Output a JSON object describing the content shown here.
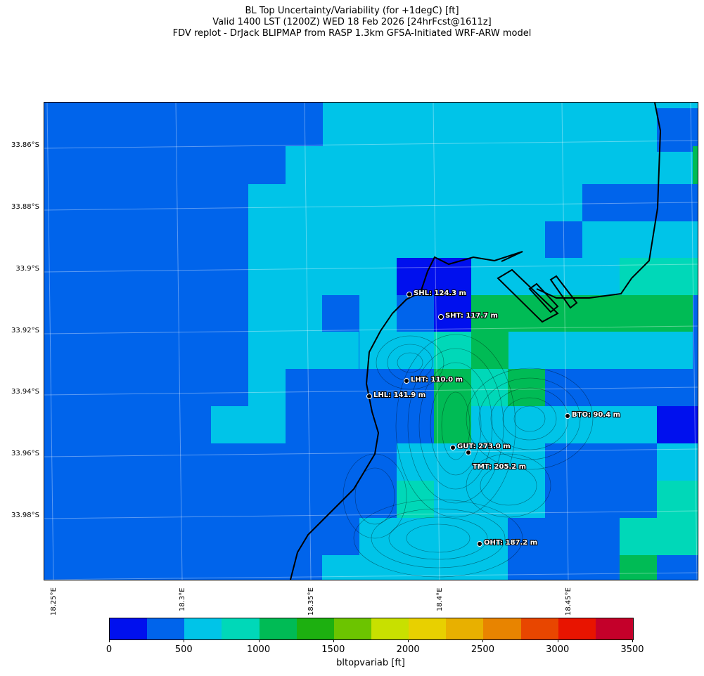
{
  "title": {
    "line1": "BL Top Uncertainty/Variability (for +1degC) [ft]",
    "line2": "Valid 1400 LST (1200Z) WED 18 Feb 2026 [24hrFcst@1611z]",
    "line3": "FDV replot - DrJack BLIPMAP from RASP 1.3km GFSA-Initiated WRF-ARW model"
  },
  "lat_labels": [
    "33.86°S",
    "33.88°S",
    "33.9°S",
    "33.92°S",
    "33.94°S",
    "33.96°S",
    "33.98°S"
  ],
  "lon_labels": [
    "18.25°E",
    "18.3°E",
    "18.35°E",
    "18.4°E",
    "18.45°E"
  ],
  "stations": [
    {
      "id": "SHL",
      "label": "SHL: 124.3 m"
    },
    {
      "id": "SHT",
      "label": "SHT: 117.7 m"
    },
    {
      "id": "LHT",
      "label": "LHT: 110.0 m"
    },
    {
      "id": "LHL",
      "label": "LHL: 141.9 m"
    },
    {
      "id": "BTO",
      "label": "BTO: 90.4 m"
    },
    {
      "id": "GUT",
      "label": "GUT: 273.0 m"
    },
    {
      "id": "TMT",
      "label": "TMT: 205.2 m"
    },
    {
      "id": "OHT",
      "label": "OHT: 187.2 m"
    }
  ],
  "colorbar": {
    "label": "bltopvariab [ft]",
    "ticks": [
      "0",
      "500",
      "1000",
      "1500",
      "2000",
      "2500",
      "3000",
      "3500"
    ],
    "colors": [
      "#0010ee",
      "#0064eb",
      "#00c4e8",
      "#00d8b8",
      "#00bb55",
      "#1db010",
      "#6cc400",
      "#c8e000",
      "#e8d000",
      "#e8b000",
      "#e88400",
      "#e84600",
      "#e81400",
      "#c4002a"
    ]
  }
}
